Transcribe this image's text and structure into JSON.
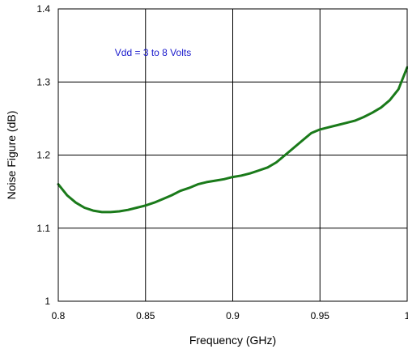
{
  "chart_data": {
    "type": "line",
    "title": "",
    "xlabel": "Frequency (GHz)",
    "ylabel": "Noise Figure (dB)",
    "xlim": [
      0.8,
      1.0
    ],
    "ylim": [
      1.0,
      1.4
    ],
    "xticks": [
      0.8,
      0.85,
      0.9,
      0.95,
      1.0
    ],
    "xtick_labels": [
      "0.8",
      "0.85",
      "0.9",
      "0.95",
      "1"
    ],
    "yticks": [
      1.0,
      1.1,
      1.2,
      1.3,
      1.4
    ],
    "ytick_labels": [
      "1",
      "1.1",
      "1.2",
      "1.3",
      "1.4"
    ],
    "grid": true,
    "annotation": "Vdd = 3 to 8 Volts",
    "colors": {
      "line": "#1a7a1a",
      "annotation": "#1a1acc",
      "grid": "#000000"
    },
    "series": [
      {
        "x": [
          0.8,
          0.805,
          0.81,
          0.815,
          0.82,
          0.825,
          0.83,
          0.835,
          0.84,
          0.845,
          0.85,
          0.855,
          0.86,
          0.865,
          0.87,
          0.875,
          0.88,
          0.885,
          0.89,
          0.895,
          0.9,
          0.905,
          0.91,
          0.915,
          0.92,
          0.925,
          0.93,
          0.935,
          0.94,
          0.945,
          0.95,
          0.955,
          0.96,
          0.965,
          0.97,
          0.975,
          0.98,
          0.985,
          0.99,
          0.995,
          1.0
        ],
        "values": [
          1.16,
          1.145,
          1.135,
          1.128,
          1.124,
          1.122,
          1.122,
          1.123,
          1.125,
          1.128,
          1.131,
          1.135,
          1.14,
          1.145,
          1.151,
          1.155,
          1.16,
          1.163,
          1.165,
          1.167,
          1.17,
          1.172,
          1.175,
          1.179,
          1.183,
          1.19,
          1.2,
          1.21,
          1.22,
          1.23,
          1.235,
          1.238,
          1.241,
          1.244,
          1.247,
          1.252,
          1.258,
          1.265,
          1.275,
          1.29,
          1.32
        ]
      }
    ]
  }
}
